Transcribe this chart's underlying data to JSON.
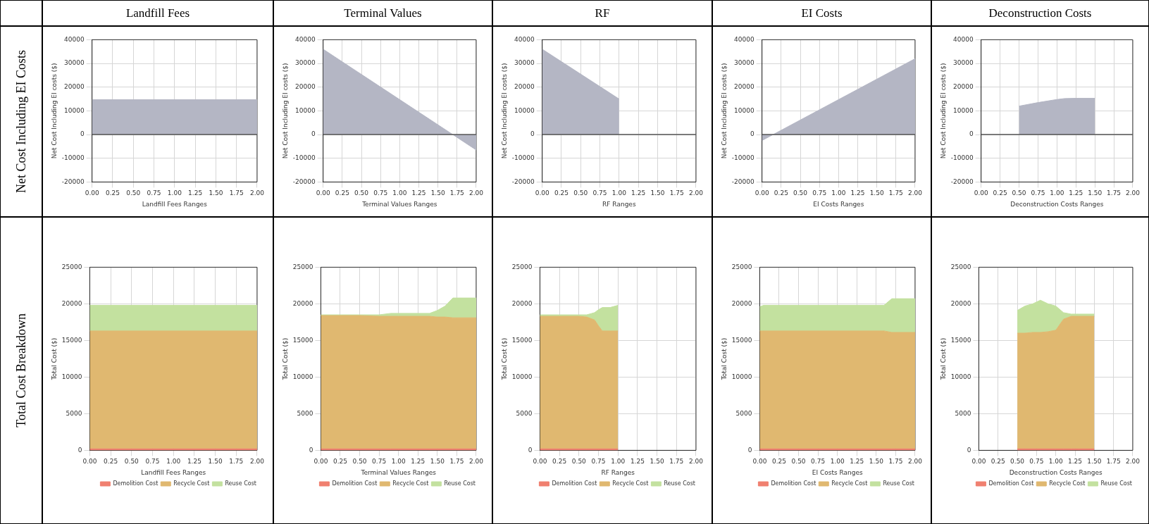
{
  "chart_data": [
    {
      "type": "other",
      "categories": [
        "Landfill Fees",
        "Terminal Values",
        "RF",
        "EI Costs",
        "Deconstruction Costs"
      ],
      "y_categories": [
        "Net Cost Including EI Costs",
        "Total Cost Breakdown"
      ]
    },
    {
      "type": "area",
      "xlabel": "Landfill Fees Ranges",
      "ylabel": "Net Cost Including EI costs ($)",
      "x": [
        0,
        2
      ],
      "values": [
        14700,
        14700
      ],
      "color": "#b4b6c4",
      "xlim": [
        0,
        2
      ],
      "ylim": [
        -20000,
        40000
      ],
      "xticks": [
        {
          "value": 0,
          "label": "0.00"
        },
        {
          "value": 0.25,
          "label": "0.25"
        },
        {
          "value": 0.5,
          "label": "0.50"
        },
        {
          "value": 0.75,
          "label": "0.75"
        },
        {
          "value": 1,
          "label": "1.00"
        },
        {
          "value": 1.25,
          "label": "1.25"
        },
        {
          "value": 1.5,
          "label": "1.50"
        },
        {
          "value": 1.75,
          "label": "1.75"
        },
        {
          "value": 2,
          "label": "2.00"
        }
      ],
      "yticks": [
        -20000,
        -10000,
        0,
        10000,
        20000,
        30000,
        40000
      ],
      "grid": true,
      "ref_lines": [
        {
          "axis": "y",
          "value": 0,
          "color": "#555555"
        }
      ]
    },
    {
      "type": "area",
      "xlabel": "Terminal Values Ranges",
      "ylabel": "Net Cost Including EI costs ($)",
      "x": [
        0,
        2
      ],
      "values": [
        36000,
        -6500
      ],
      "color": "#b4b6c4",
      "xlim": [
        0,
        2
      ],
      "ylim": [
        -20000,
        40000
      ],
      "xticks": [
        {
          "value": 0,
          "label": "0.00"
        },
        {
          "value": 0.25,
          "label": "0.25"
        },
        {
          "value": 0.5,
          "label": "0.50"
        },
        {
          "value": 0.75,
          "label": "0.75"
        },
        {
          "value": 1,
          "label": "1.00"
        },
        {
          "value": 1.25,
          "label": "1.25"
        },
        {
          "value": 1.5,
          "label": "1.50"
        },
        {
          "value": 1.75,
          "label": "1.75"
        },
        {
          "value": 2,
          "label": "2.00"
        }
      ],
      "yticks": [
        -20000,
        -10000,
        0,
        10000,
        20000,
        30000,
        40000
      ],
      "grid": true,
      "ref_lines": [
        {
          "axis": "y",
          "value": 0,
          "color": "#555555"
        }
      ]
    },
    {
      "type": "area",
      "xlabel": "RF Ranges",
      "ylabel": "Net Cost Including EI costs ($)",
      "x": [
        0,
        1
      ],
      "values": [
        36000,
        15000
      ],
      "color": "#b4b6c4",
      "xlim": [
        0,
        2
      ],
      "ylim": [
        -20000,
        40000
      ],
      "xticks": [
        {
          "value": 0,
          "label": "0.00"
        },
        {
          "value": 0.25,
          "label": "0.25"
        },
        {
          "value": 0.5,
          "label": "0.50"
        },
        {
          "value": 0.75,
          "label": "0.75"
        },
        {
          "value": 1,
          "label": "1.00"
        },
        {
          "value": 1.25,
          "label": "1.25"
        },
        {
          "value": 1.5,
          "label": "1.50"
        },
        {
          "value": 1.75,
          "label": "1.75"
        },
        {
          "value": 2,
          "label": "2.00"
        }
      ],
      "yticks": [
        -20000,
        -10000,
        0,
        10000,
        20000,
        30000,
        40000
      ],
      "grid": true,
      "ref_lines": [
        {
          "axis": "y",
          "value": 0,
          "color": "#555555"
        }
      ]
    },
    {
      "type": "area",
      "xlabel": "EI Costs Ranges",
      "ylabel": "Net Cost Including EI costs ($)",
      "x": [
        0,
        2
      ],
      "values": [
        -2500,
        32000
      ],
      "color": "#b4b6c4",
      "xlim": [
        0,
        2
      ],
      "ylim": [
        -20000,
        40000
      ],
      "xticks": [
        {
          "value": 0,
          "label": "0.00"
        },
        {
          "value": 0.25,
          "label": "0.25"
        },
        {
          "value": 0.5,
          "label": "0.50"
        },
        {
          "value": 0.75,
          "label": "0.75"
        },
        {
          "value": 1,
          "label": "1.00"
        },
        {
          "value": 1.25,
          "label": "1.25"
        },
        {
          "value": 1.5,
          "label": "1.50"
        },
        {
          "value": 1.75,
          "label": "1.75"
        },
        {
          "value": 2,
          "label": "2.00"
        }
      ],
      "yticks": [
        -20000,
        -10000,
        0,
        10000,
        20000,
        30000,
        40000
      ],
      "grid": true,
      "ref_lines": [
        {
          "axis": "y",
          "value": 0,
          "color": "#555555"
        }
      ]
    },
    {
      "type": "area",
      "xlabel": "Deconstruction Costs Ranges",
      "ylabel": "Net Cost Including EI costs ($)",
      "x": [
        0.5,
        0.75,
        1,
        1.1,
        1.25,
        1.5
      ],
      "values": [
        12000,
        13500,
        14800,
        15200,
        15300,
        15300
      ],
      "color": "#b4b6c4",
      "xlim": [
        0,
        2
      ],
      "ylim": [
        -20000,
        40000
      ],
      "xticks": [
        {
          "value": 0,
          "label": "0.00"
        },
        {
          "value": 0.25,
          "label": "0.25"
        },
        {
          "value": 0.5,
          "label": "0.50"
        },
        {
          "value": 0.75,
          "label": "0.75"
        },
        {
          "value": 1,
          "label": "1.00"
        },
        {
          "value": 1.25,
          "label": "1.25"
        },
        {
          "value": 1.5,
          "label": "1.50"
        },
        {
          "value": 1.75,
          "label": "1.75"
        },
        {
          "value": 2,
          "label": "2.00"
        }
      ],
      "yticks": [
        -20000,
        -10000,
        0,
        10000,
        20000,
        30000,
        40000
      ],
      "grid": true,
      "ref_lines": [
        {
          "axis": "y",
          "value": 0,
          "color": "#555555"
        }
      ]
    },
    {
      "type": "area",
      "stacked": true,
      "xlabel": "Landfill Fees Ranges",
      "ylabel": "Total Cost ($)",
      "x": [
        0,
        2
      ],
      "series": [
        {
          "name": "Demolition Cost",
          "color": "#f08070",
          "values": [
            200,
            200
          ]
        },
        {
          "name": "Recycle Cost",
          "color": "#e0b870",
          "values": [
            16100,
            16100
          ]
        },
        {
          "name": "Reuse Cost",
          "color": "#c3e19f",
          "values": [
            3500,
            3500
          ]
        }
      ],
      "xlim": [
        0,
        2
      ],
      "ylim": [
        0,
        25000
      ],
      "xticks": [
        {
          "value": 0,
          "label": "0.00"
        },
        {
          "value": 0.25,
          "label": "0.25"
        },
        {
          "value": 0.5,
          "label": "0.50"
        },
        {
          "value": 0.75,
          "label": "0.75"
        },
        {
          "value": 1,
          "label": "1.00"
        },
        {
          "value": 1.25,
          "label": "1.25"
        },
        {
          "value": 1.5,
          "label": "1.50"
        },
        {
          "value": 1.75,
          "label": "1.75"
        },
        {
          "value": 2,
          "label": "2.00"
        }
      ],
      "yticks": [
        0,
        5000,
        10000,
        15000,
        20000,
        25000
      ],
      "grid": true,
      "legend": "bottom right"
    },
    {
      "type": "area",
      "stacked": true,
      "xlabel": "Terminal Values Ranges",
      "ylabel": "Total Cost ($)",
      "x": [
        0,
        0.25,
        0.5,
        0.75,
        0.9,
        1,
        1.25,
        1.4,
        1.5,
        1.6,
        1.7,
        1.75,
        2
      ],
      "series": [
        {
          "name": "Demolition Cost",
          "color": "#f08070",
          "values": [
            200,
            200,
            200,
            200,
            200,
            200,
            200,
            200,
            200,
            200,
            200,
            200,
            200
          ]
        },
        {
          "name": "Recycle Cost",
          "color": "#e0b870",
          "values": [
            18200,
            18200,
            18200,
            18100,
            18100,
            18100,
            18100,
            18100,
            18000,
            18000,
            17900,
            17900,
            17900
          ]
        },
        {
          "name": "Reuse Cost",
          "color": "#c3e19f",
          "values": [
            100,
            100,
            100,
            200,
            400,
            400,
            400,
            400,
            900,
            1500,
            2700,
            2700,
            2700
          ]
        }
      ],
      "xlim": [
        0,
        2
      ],
      "ylim": [
        0,
        25000
      ],
      "xticks": [
        {
          "value": 0,
          "label": "0.00"
        },
        {
          "value": 0.25,
          "label": "0.25"
        },
        {
          "value": 0.5,
          "label": "0.50"
        },
        {
          "value": 0.75,
          "label": "0.75"
        },
        {
          "value": 1,
          "label": "1.00"
        },
        {
          "value": 1.25,
          "label": "1.25"
        },
        {
          "value": 1.5,
          "label": "1.50"
        },
        {
          "value": 1.75,
          "label": "1.75"
        },
        {
          "value": 2,
          "label": "2.00"
        }
      ],
      "yticks": [
        0,
        5000,
        10000,
        15000,
        20000,
        25000
      ],
      "grid": true,
      "legend": "bottom right"
    },
    {
      "type": "area",
      "stacked": true,
      "xlabel": "RF Ranges",
      "ylabel": "Total Cost ($)",
      "x": [
        0,
        0.25,
        0.5,
        0.6,
        0.7,
        0.75,
        0.8,
        0.9,
        1
      ],
      "series": [
        {
          "name": "Demolition Cost",
          "color": "#f08070",
          "values": [
            200,
            200,
            200,
            200,
            200,
            200,
            200,
            200,
            200
          ]
        },
        {
          "name": "Recycle Cost",
          "color": "#e0b870",
          "values": [
            18100,
            18100,
            18100,
            18000,
            17600,
            16800,
            16100,
            16100,
            16100
          ]
        },
        {
          "name": "Reuse Cost",
          "color": "#c3e19f",
          "values": [
            200,
            200,
            200,
            300,
            1000,
            2200,
            3200,
            3200,
            3500
          ]
        }
      ],
      "xlim": [
        0,
        2
      ],
      "ylim": [
        0,
        25000
      ],
      "xticks": [
        {
          "value": 0,
          "label": "0.00"
        },
        {
          "value": 0.25,
          "label": "0.25"
        },
        {
          "value": 0.5,
          "label": "0.50"
        },
        {
          "value": 0.75,
          "label": "0.75"
        },
        {
          "value": 1,
          "label": "1.00"
        },
        {
          "value": 1.25,
          "label": "1.25"
        },
        {
          "value": 1.5,
          "label": "1.50"
        },
        {
          "value": 1.75,
          "label": "1.75"
        },
        {
          "value": 2,
          "label": "2.00"
        }
      ],
      "yticks": [
        0,
        5000,
        10000,
        15000,
        20000,
        25000
      ],
      "grid": true,
      "legend": "bottom right"
    },
    {
      "type": "area",
      "stacked": true,
      "xlabel": "EI Costs Ranges",
      "ylabel": "Total Cost ($)",
      "x": [
        0,
        0.05,
        1.6,
        1.7,
        2
      ],
      "series": [
        {
          "name": "Demolition Cost",
          "color": "#f08070",
          "values": [
            200,
            200,
            200,
            200,
            200
          ]
        },
        {
          "name": "Recycle Cost",
          "color": "#e0b870",
          "values": [
            16100,
            16100,
            16100,
            15900,
            15900
          ]
        },
        {
          "name": "Reuse Cost",
          "color": "#c3e19f",
          "values": [
            3300,
            3500,
            3500,
            4600,
            4600
          ]
        }
      ],
      "xlim": [
        0,
        2
      ],
      "ylim": [
        0,
        25000
      ],
      "xticks": [
        {
          "value": 0,
          "label": "0.00"
        },
        {
          "value": 0.25,
          "label": "0.25"
        },
        {
          "value": 0.5,
          "label": "0.50"
        },
        {
          "value": 0.75,
          "label": "0.75"
        },
        {
          "value": 1,
          "label": "1.00"
        },
        {
          "value": 1.25,
          "label": "1.25"
        },
        {
          "value": 1.5,
          "label": "1.50"
        },
        {
          "value": 1.75,
          "label": "1.75"
        },
        {
          "value": 2,
          "label": "2.00"
        }
      ],
      "yticks": [
        0,
        5000,
        10000,
        15000,
        20000,
        25000
      ],
      "grid": true,
      "legend": "bottom right"
    },
    {
      "type": "area",
      "stacked": true,
      "xlabel": "Deconstruction Costs Ranges",
      "ylabel": "Total Cost ($)",
      "x": [
        0.5,
        0.6,
        0.7,
        0.8,
        0.9,
        1,
        1.1,
        1.2,
        1.3,
        1.5
      ],
      "series": [
        {
          "name": "Demolition Cost",
          "color": "#f08070",
          "values": [
            200,
            200,
            200,
            200,
            200,
            200,
            200,
            200,
            200,
            200
          ]
        },
        {
          "name": "Recycle Cost",
          "color": "#e0b870",
          "values": [
            15800,
            15800,
            15900,
            15900,
            16000,
            16200,
            17700,
            18100,
            18100,
            18100
          ]
        },
        {
          "name": "Reuse Cost",
          "color": "#c3e19f",
          "values": [
            3100,
            3700,
            3900,
            4400,
            3800,
            3300,
            900,
            300,
            300,
            300
          ]
        }
      ],
      "xlim": [
        0,
        2
      ],
      "ylim": [
        0,
        25000
      ],
      "xticks": [
        {
          "value": 0,
          "label": "0.00"
        },
        {
          "value": 0.25,
          "label": "0.25"
        },
        {
          "value": 0.5,
          "label": "0.50"
        },
        {
          "value": 0.75,
          "label": "0.75"
        },
        {
          "value": 1,
          "label": "1.00"
        },
        {
          "value": 1.25,
          "label": "1.25"
        },
        {
          "value": 1.5,
          "label": "1.50"
        },
        {
          "value": 1.75,
          "label": "1.75"
        },
        {
          "value": 2,
          "label": "2.00"
        }
      ],
      "yticks": [
        0,
        5000,
        10000,
        15000,
        20000,
        25000
      ],
      "grid": true,
      "legend": "bottom right"
    }
  ]
}
